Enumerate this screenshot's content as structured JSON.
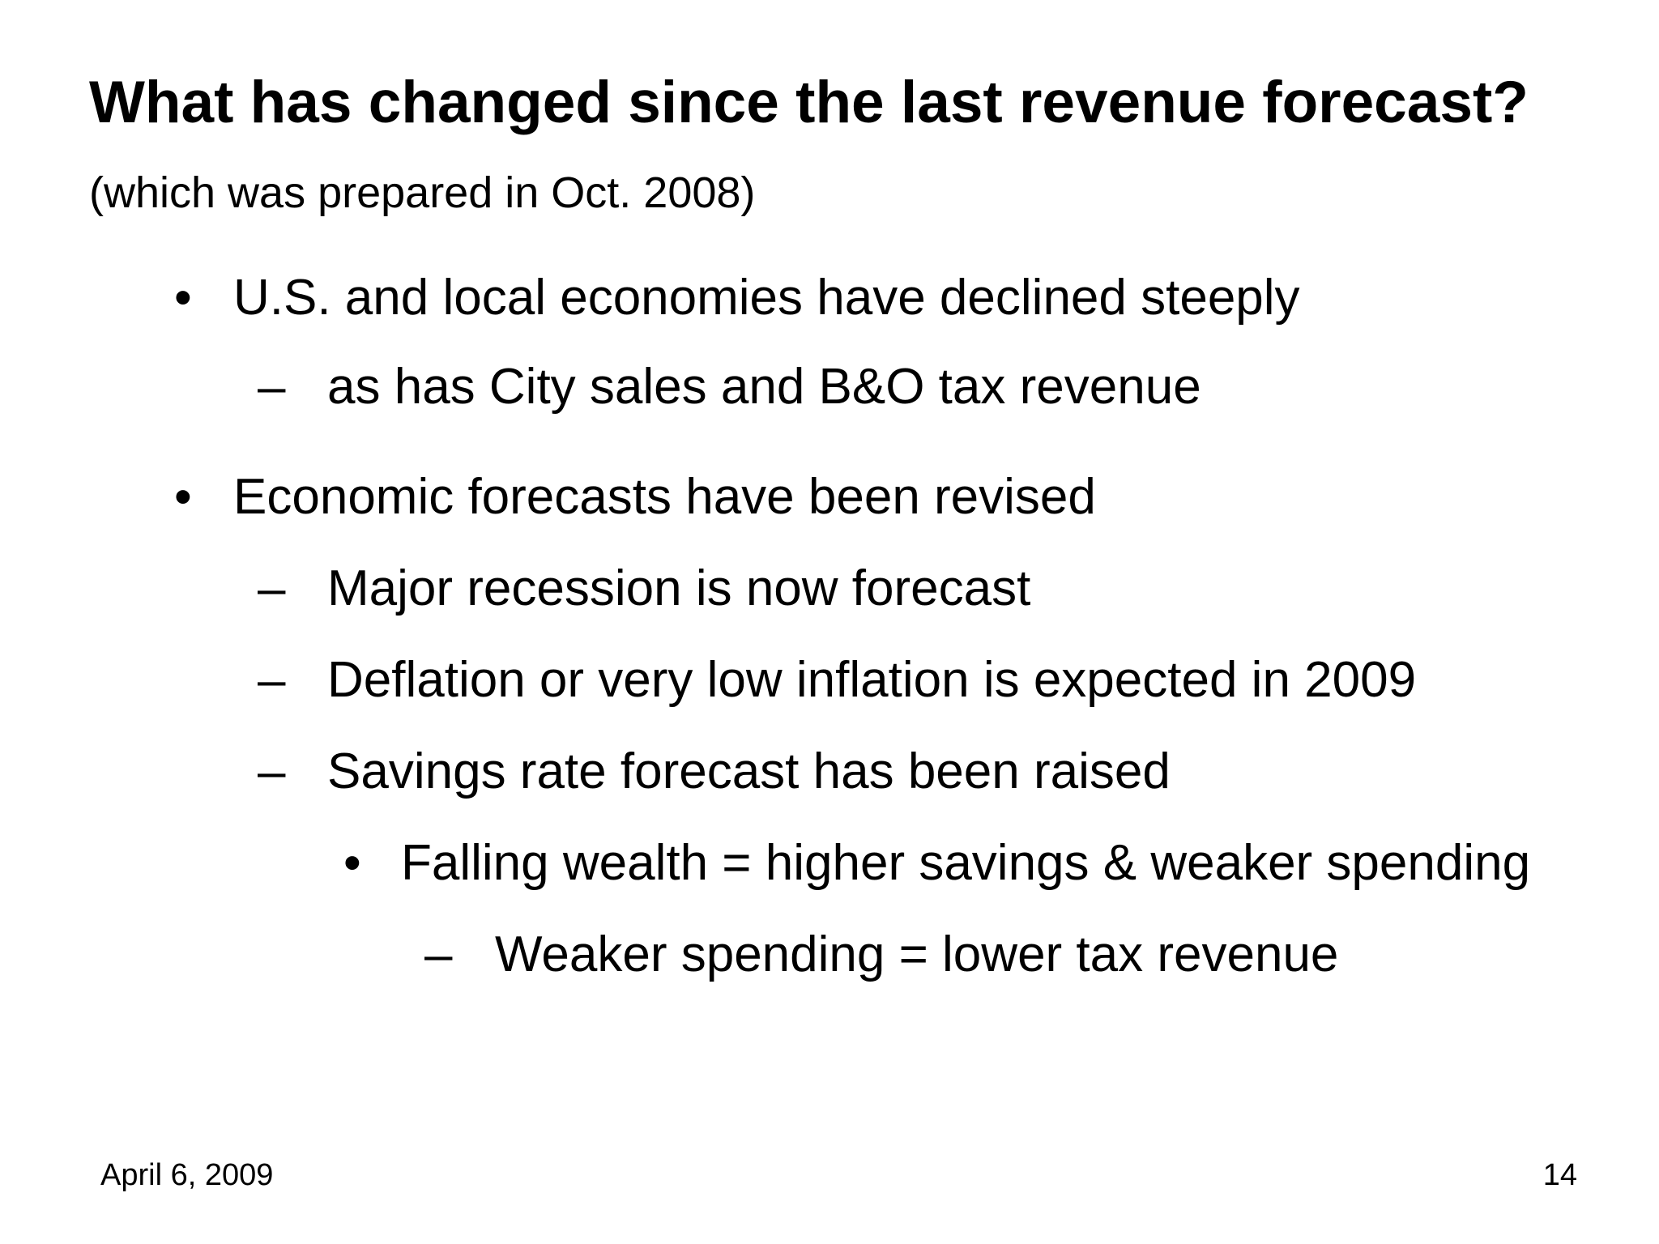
{
  "slide": {
    "title": "What has changed since the last revenue forecast?",
    "subtitle": "(which was prepared in Oct. 2008)",
    "bullet_glyph": "•",
    "dash_glyph": "–",
    "items": [
      {
        "level": 1,
        "text": "U.S. and local economies have declined steeply"
      },
      {
        "level": 2,
        "text": "as has City sales and B&O tax revenue"
      },
      {
        "level": 1,
        "text": "Economic forecasts have been revised"
      },
      {
        "level": 2,
        "text": "Major recession is now forecast"
      },
      {
        "level": 2,
        "text": "Deflation or very low inflation is expected in 2009"
      },
      {
        "level": 2,
        "text": "Savings rate forecast has been raised"
      },
      {
        "level": 3,
        "text": "Falling wealth = higher savings & weaker spending"
      },
      {
        "level": 4,
        "text": "Weaker spending = lower tax revenue"
      }
    ],
    "footer": {
      "date": "April 6, 2009",
      "page_number": "14"
    }
  }
}
